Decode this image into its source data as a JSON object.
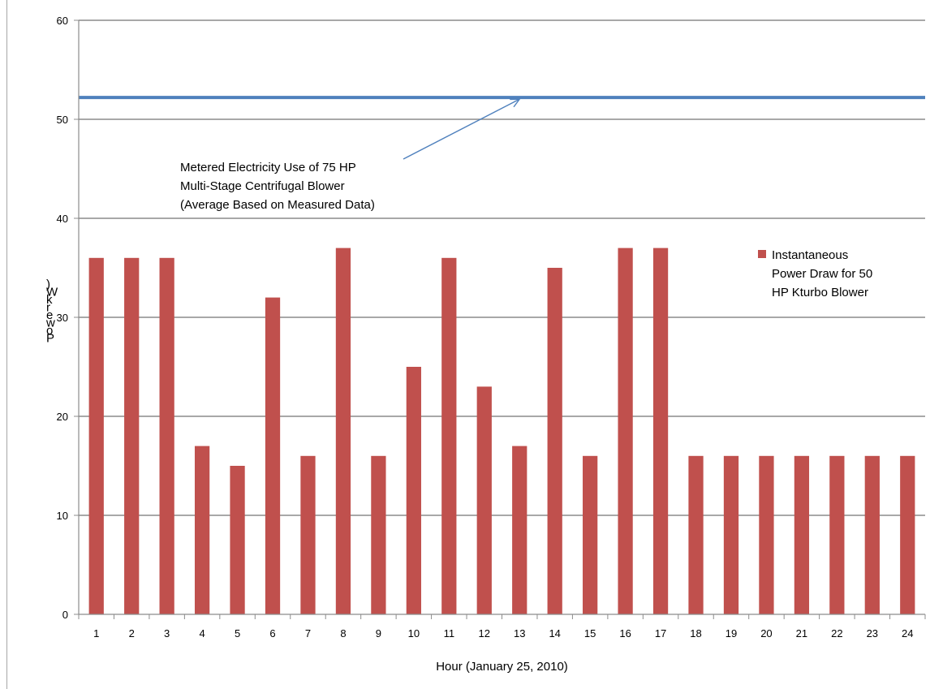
{
  "chart_data": {
    "type": "bar",
    "xlabel": "Hour (January  25, 2010)",
    "ylabel": "Power (kW)",
    "ylim": [
      0,
      60
    ],
    "ytick_step": 10,
    "grid": true,
    "legend_position": "right",
    "categories": [
      "1",
      "2",
      "3",
      "4",
      "5",
      "6",
      "7",
      "8",
      "9",
      "10",
      "11",
      "12",
      "13",
      "14",
      "15",
      "16",
      "17",
      "18",
      "19",
      "20",
      "21",
      "22",
      "23",
      "24"
    ],
    "series": [
      {
        "name": "Instantaneous Power Draw for 50 HP Kturbo Blower",
        "legend_lines": [
          "Instantaneous",
          "Power Draw for 50",
          "HP Kturbo Blower"
        ],
        "color": "#c0504d",
        "values": [
          36,
          36,
          36,
          17,
          15,
          32,
          16,
          37,
          16,
          25,
          36,
          23,
          17,
          35,
          16,
          37,
          37,
          16,
          16,
          16,
          16,
          16,
          16,
          16
        ]
      }
    ],
    "reference_line": {
      "value": 52.2,
      "color": "#4f81bd"
    },
    "annotation": {
      "lines": [
        "Metered Electricity Use of 75 HP",
        "Multi-Stage Centrifugal Blower",
        "(Average Based on Measured Data)"
      ],
      "points_to_category": "13"
    }
  }
}
